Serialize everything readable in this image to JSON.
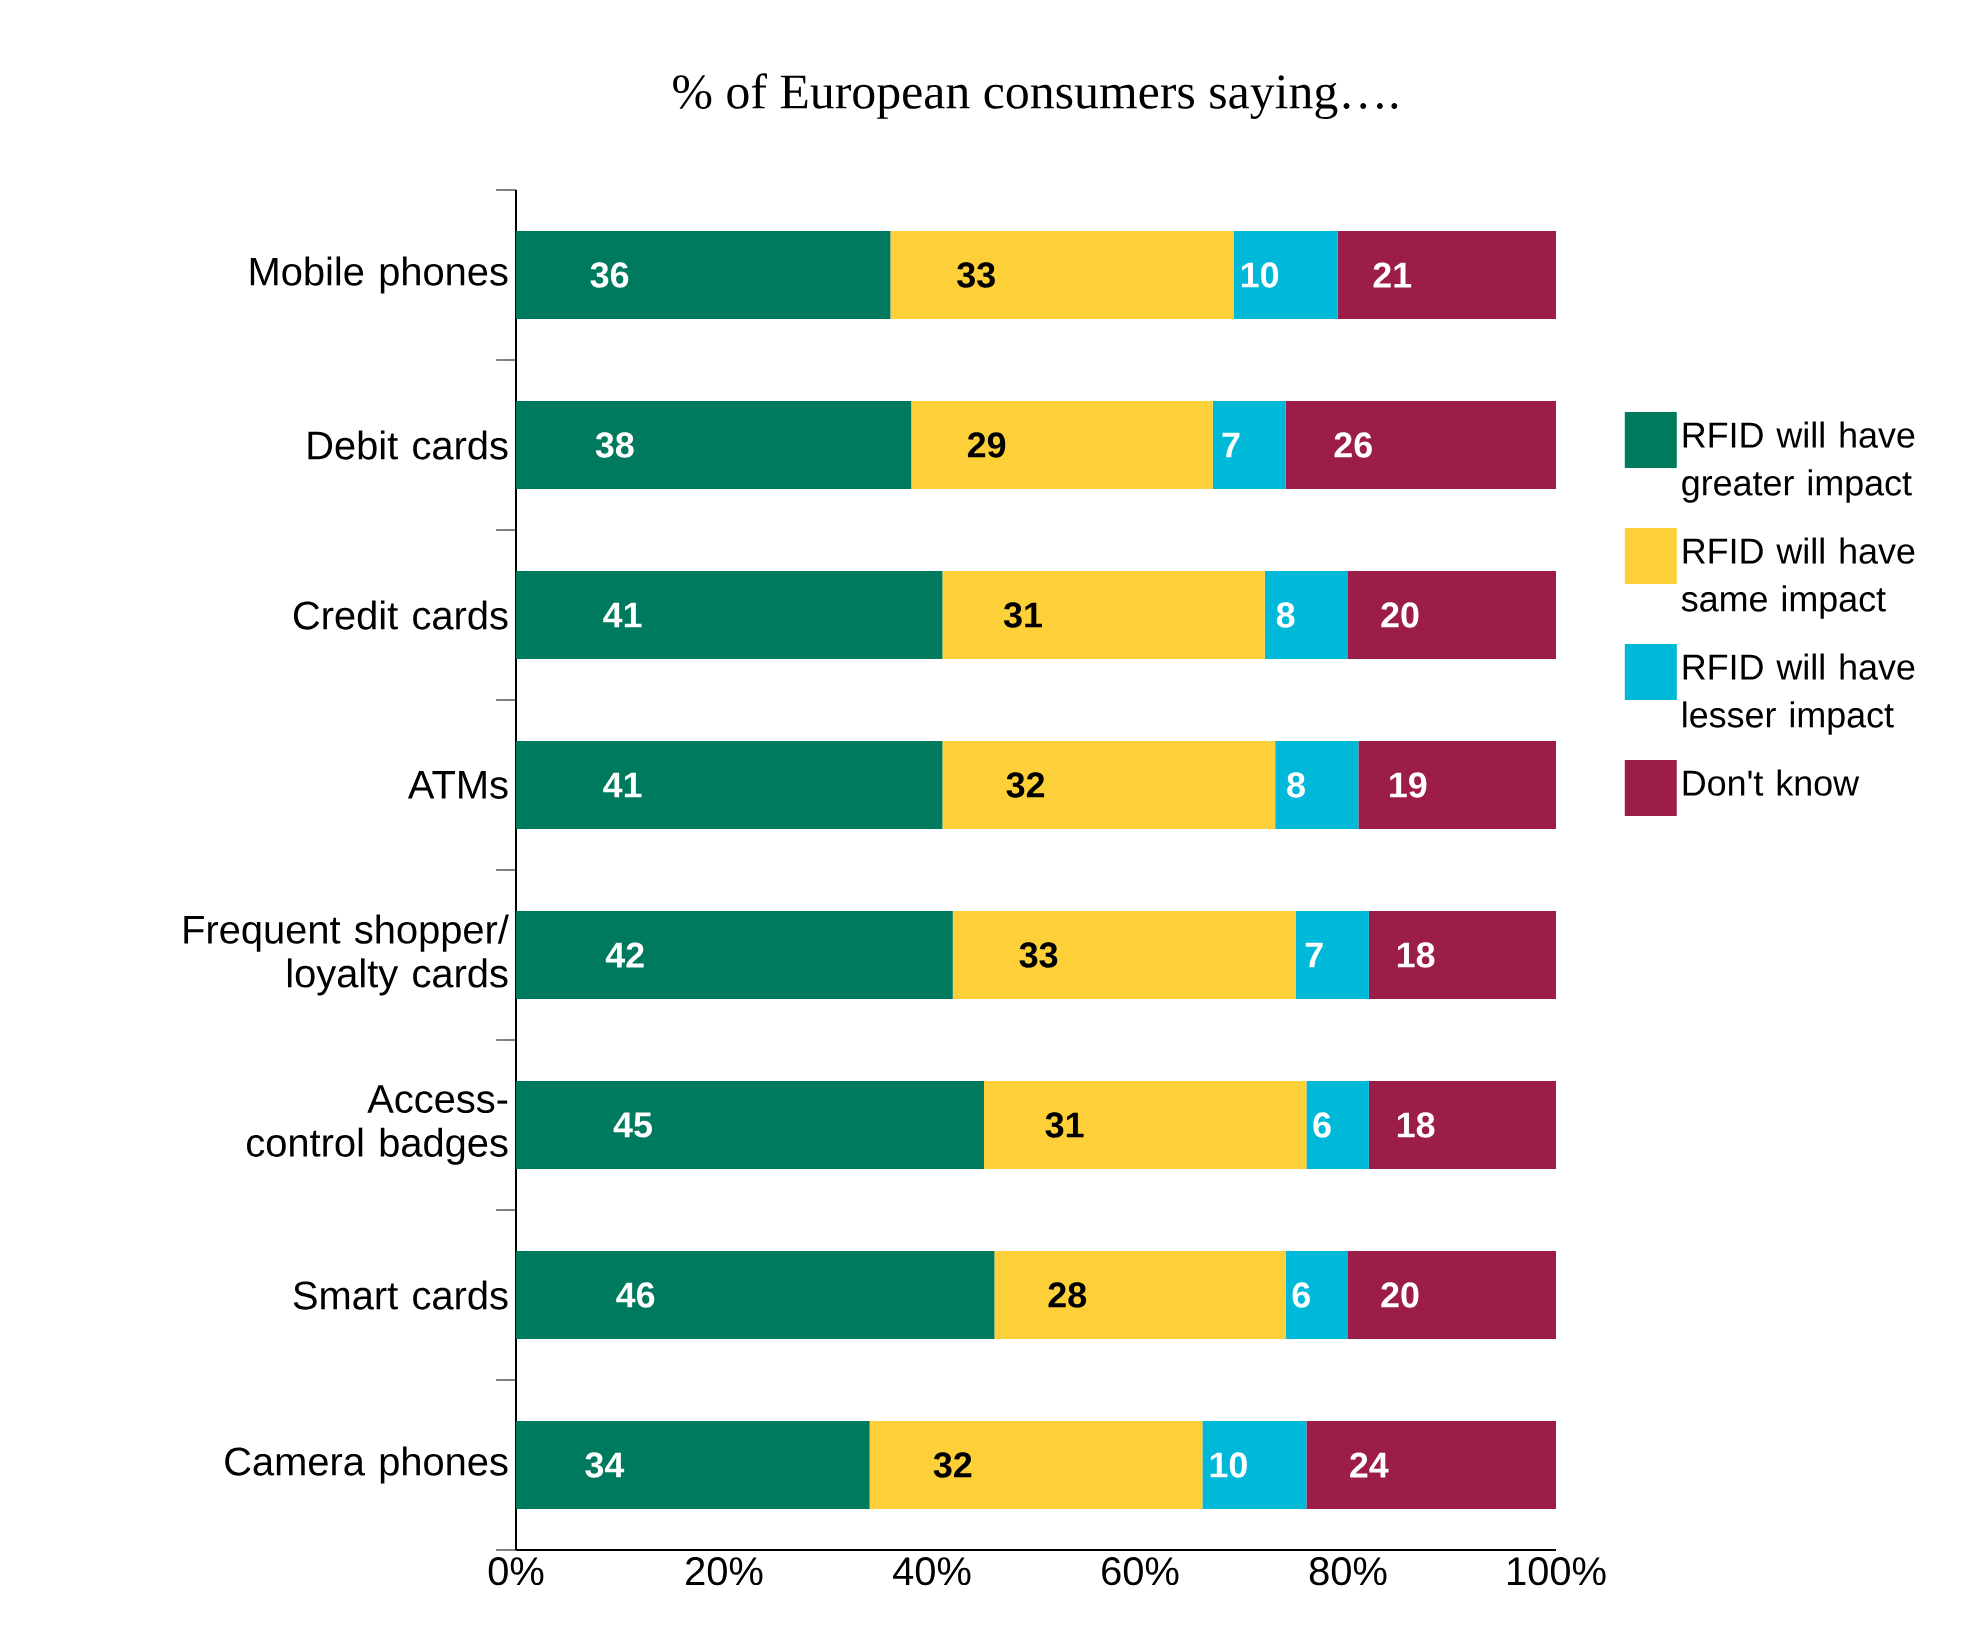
{
  "chart_data": {
    "type": "bar",
    "orientation": "horizontal",
    "stacked": true,
    "title": "% of European consumers saying….",
    "categories": [
      "Mobile phones",
      "Debit cards",
      "Credit cards",
      "ATMs",
      "Frequent shopper/ loyalty cards",
      "Access-control badges",
      "Smart cards",
      "Camera phones"
    ],
    "series": [
      {
        "name": "RFID will have greater impact",
        "color": "#007a5e",
        "values": [
          36,
          38,
          41,
          41,
          42,
          45,
          46,
          34
        ]
      },
      {
        "name": "RFID will have same impact",
        "color": "#fdd03a",
        "values": [
          33,
          29,
          31,
          32,
          33,
          31,
          28,
          32
        ]
      },
      {
        "name": "RFID will have lesser impact",
        "color": "#00b9d8",
        "values": [
          10,
          7,
          8,
          8,
          7,
          6,
          6,
          10
        ]
      },
      {
        "name": "Don't know",
        "color": "#9c1c4a",
        "values": [
          21,
          26,
          20,
          19,
          18,
          18,
          20,
          24
        ]
      }
    ],
    "xlim": [
      0,
      100
    ],
    "xticks": [
      {
        "value": 0,
        "label": "0%"
      },
      {
        "value": 20,
        "label": "20%"
      },
      {
        "value": 40,
        "label": "40%"
      },
      {
        "value": 60,
        "label": "60%"
      },
      {
        "value": 80,
        "label": "80%"
      },
      {
        "value": 100,
        "label": "100%"
      }
    ],
    "data_labels": true,
    "legend": "right",
    "grid": false
  }
}
